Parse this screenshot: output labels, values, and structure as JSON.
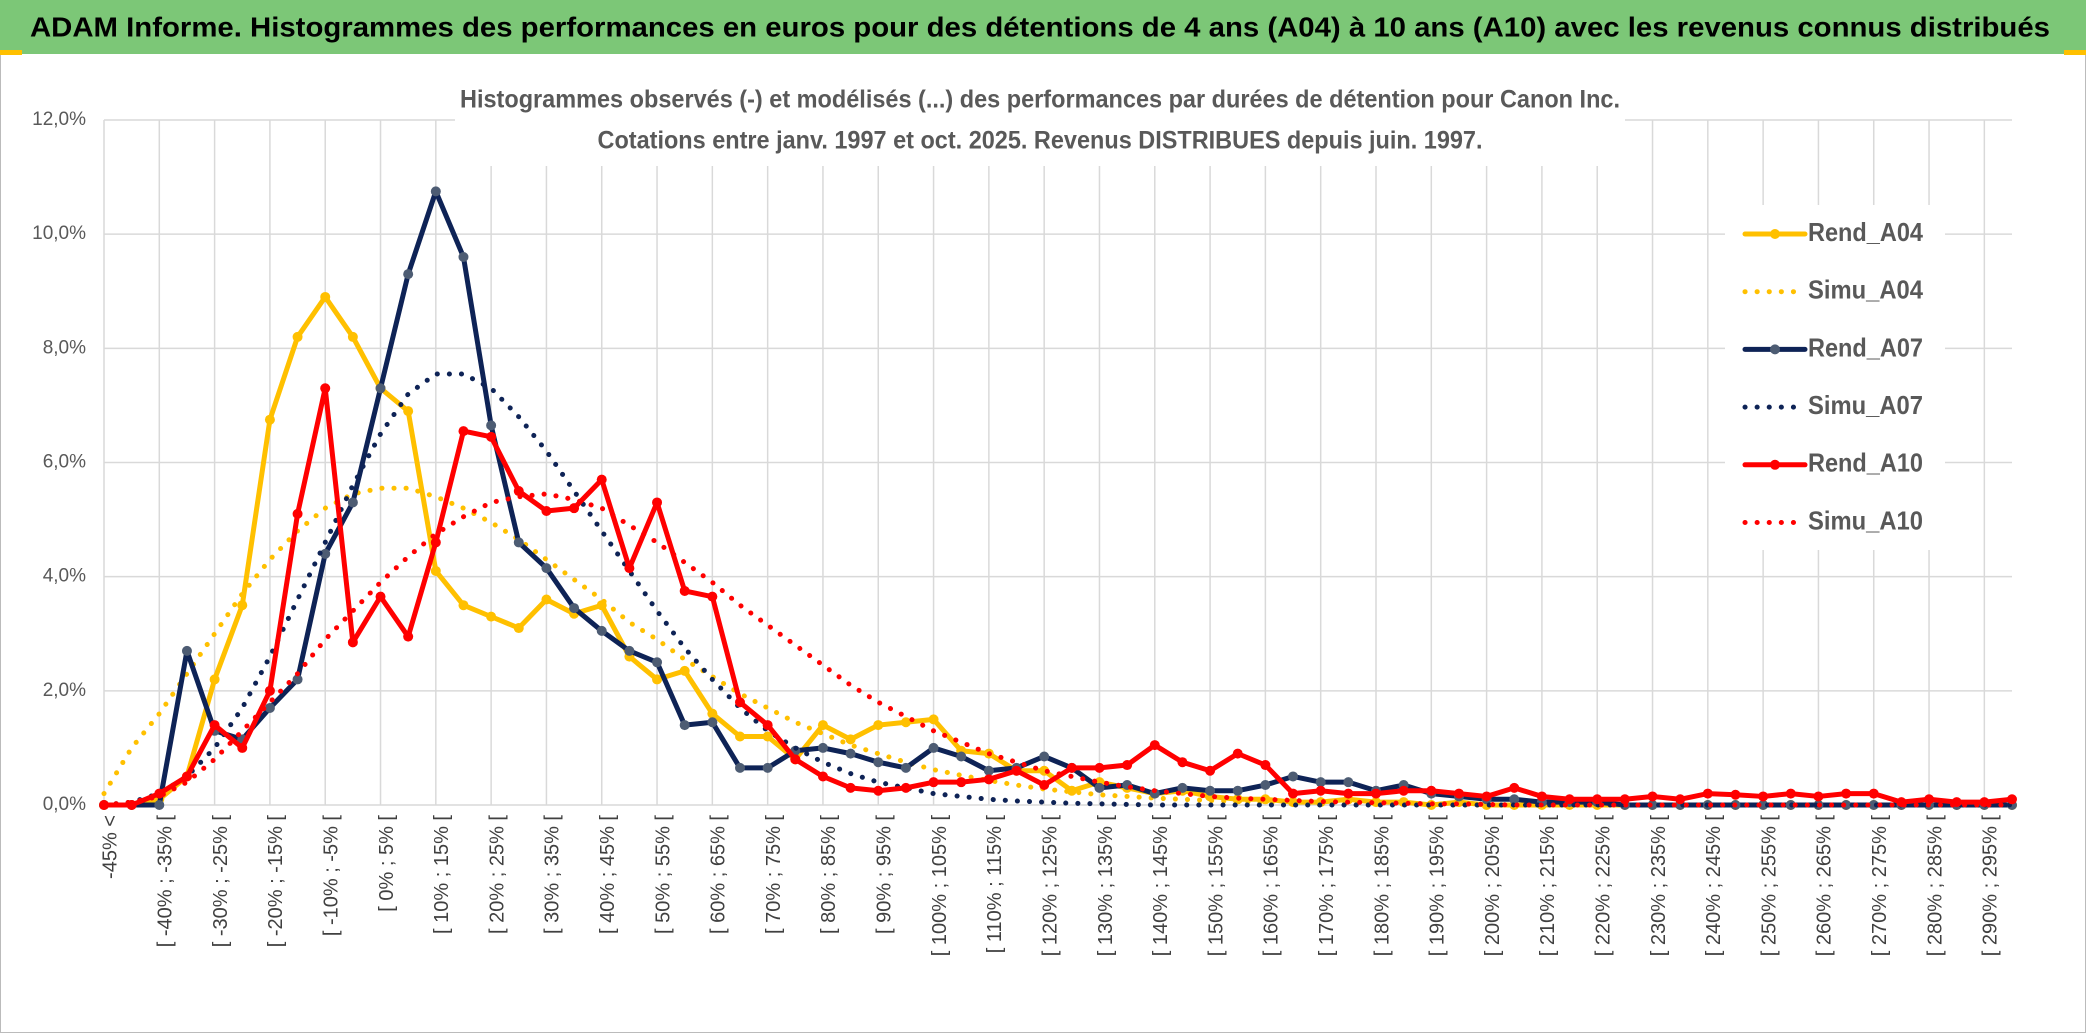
{
  "header": {
    "title": "ADAM Informe. Histogrammes des performances en euros pour des détentions de 4 ans (A04) à 10 ans (A10) avec les revenus connus distribués"
  },
  "chart_data": {
    "type": "line",
    "title": [
      "Histogrammes observés (-) et modélisés (...) des performances par durées de détention pour Canon Inc.",
      "Cotations entre janv. 1997 et oct. 2025. Revenus DISTRIBUES depuis juin. 1997."
    ],
    "categories": [
      "-45% <",
      null,
      "[ -40% ; -35% [",
      null,
      "[ -30% ; -25% [",
      null,
      "[ -20% ; -15% [",
      null,
      "[ -10% ; -5% [",
      null,
      "[ 0% ; 5% [",
      null,
      "[ 10% ; 15% [",
      null,
      "[ 20% ; 25% [",
      null,
      "[ 30% ; 35% [",
      null,
      "[ 40% ; 45% [",
      null,
      "[ 50% ; 55% [",
      null,
      "[ 60% ; 65% [",
      null,
      "[ 70% ; 75% [",
      null,
      "[ 80% ; 85% [",
      null,
      "[ 90% ; 95% [",
      null,
      "[ 100% ; 105% [",
      null,
      "[ 110% ; 115% [",
      null,
      "[ 120% ; 125% [",
      null,
      "[ 130% ; 135% [",
      null,
      "[ 140% ; 145% [",
      null,
      "[ 150% ; 155% [",
      null,
      "[ 160% ; 165% [",
      null,
      "[ 170% ; 175% [",
      null,
      "[ 180% ; 185% [",
      null,
      "[ 190% ; 195% [",
      null,
      "[ 200% ; 205% [",
      null,
      "[ 210% ; 215% [",
      null,
      "[ 220% ; 225% [",
      null,
      "[ 230% ; 235% [",
      null,
      "[ 240% ; 245% [",
      null,
      "[ 250% ; 255% [",
      null,
      "[ 260% ; 265% [",
      null,
      "[ 270% ; 275% [",
      null,
      "[ 280% ; 285% [",
      null,
      "[ 290% ; 295% [",
      null
    ],
    "series": [
      {
        "name": "Rend_A04",
        "color": "#ffc000",
        "style": "solid",
        "markers": true,
        "values": [
          0,
          0,
          0.1,
          0.5,
          2.2,
          3.5,
          6.75,
          8.2,
          8.9,
          8.2,
          7.3,
          6.9,
          4.1,
          3.5,
          3.3,
          3.1,
          3.6,
          3.35,
          3.5,
          2.6,
          2.2,
          2.35,
          1.6,
          1.2,
          1.2,
          0.8,
          1.4,
          1.15,
          1.4,
          1.45,
          1.5,
          0.95,
          0.9,
          0.6,
          0.6,
          0.25,
          0.4,
          0.3,
          0.2,
          0.25,
          0.15,
          0.1,
          0.1,
          0.05,
          0.05,
          0.1,
          0.05,
          0.05,
          0,
          0.05,
          0,
          0,
          0,
          0,
          0,
          0,
          0,
          0,
          0,
          0,
          0,
          0,
          0,
          0,
          0,
          0,
          0,
          0,
          0,
          0
        ]
      },
      {
        "name": "Simu_A04",
        "color": "#ffc000",
        "style": "dotted",
        "markers": false,
        "values": [
          0.2,
          1.0,
          1.6,
          2.3,
          3.0,
          3.7,
          4.3,
          4.8,
          5.2,
          5.45,
          5.55,
          5.55,
          5.4,
          5.2,
          4.95,
          4.65,
          4.3,
          3.95,
          3.6,
          3.2,
          2.9,
          2.55,
          2.25,
          1.95,
          1.7,
          1.45,
          1.25,
          1.05,
          0.9,
          0.75,
          0.62,
          0.52,
          0.43,
          0.35,
          0.28,
          0.23,
          0.18,
          0.15,
          0.12,
          0.1,
          0.08,
          0.06,
          0.05,
          0.04,
          0.03,
          0.02,
          0.02,
          0.01,
          0.01,
          0,
          0,
          0,
          0,
          0,
          0,
          0,
          0,
          0,
          0,
          0,
          0,
          0,
          0,
          0,
          0,
          0,
          0,
          0,
          0,
          0
        ]
      },
      {
        "name": "Rend_A07",
        "color": "#0e2356",
        "marker_color": "#4d5c73",
        "style": "solid",
        "markers": true,
        "values": [
          0,
          0,
          0,
          2.7,
          1.3,
          1.15,
          1.7,
          2.2,
          4.4,
          5.3,
          7.3,
          9.3,
          10.75,
          9.6,
          6.65,
          4.6,
          4.15,
          3.45,
          3.05,
          2.7,
          2.5,
          1.4,
          1.45,
          0.65,
          0.65,
          0.95,
          1.0,
          0.9,
          0.75,
          0.65,
          1.0,
          0.85,
          0.6,
          0.65,
          0.85,
          0.65,
          0.3,
          0.35,
          0.2,
          0.3,
          0.25,
          0.25,
          0.35,
          0.5,
          0.4,
          0.4,
          0.25,
          0.35,
          0.2,
          0.15,
          0.1,
          0.1,
          0.05,
          0.05,
          0.05,
          0,
          0,
          0,
          0,
          0,
          0,
          0,
          0,
          0,
          0,
          0,
          0,
          0,
          0,
          0
        ]
      },
      {
        "name": "Simu_A07",
        "color": "#0e2356",
        "style": "dotted",
        "markers": false,
        "values": [
          0,
          0.05,
          0.2,
          0.5,
          1.0,
          1.7,
          2.6,
          3.6,
          4.6,
          5.6,
          6.5,
          7.2,
          7.55,
          7.55,
          7.3,
          6.8,
          6.2,
          5.5,
          4.8,
          4.1,
          3.4,
          2.75,
          2.2,
          1.7,
          1.3,
          1.0,
          0.75,
          0.55,
          0.4,
          0.3,
          0.2,
          0.15,
          0.1,
          0.07,
          0.05,
          0.03,
          0.02,
          0.01,
          0,
          0,
          0,
          0,
          0,
          0,
          0,
          0,
          0,
          0,
          0,
          0,
          0,
          0,
          0,
          0,
          0,
          0,
          0,
          0,
          0,
          0,
          0,
          0,
          0,
          0,
          0,
          0,
          0,
          0,
          0,
          0
        ]
      },
      {
        "name": "Rend_A10",
        "color": "#ff0000",
        "style": "solid",
        "markers": true,
        "values": [
          0,
          0,
          0.2,
          0.5,
          1.4,
          1.0,
          2.0,
          5.1,
          7.3,
          2.85,
          3.65,
          2.95,
          4.6,
          6.55,
          6.45,
          5.5,
          5.15,
          5.2,
          5.7,
          4.15,
          5.3,
          3.75,
          3.65,
          1.8,
          1.4,
          0.8,
          0.5,
          0.3,
          0.25,
          0.3,
          0.4,
          0.4,
          0.45,
          0.6,
          0.35,
          0.65,
          0.65,
          0.7,
          1.05,
          0.75,
          0.6,
          0.9,
          0.7,
          0.2,
          0.25,
          0.2,
          0.2,
          0.25,
          0.25,
          0.2,
          0.15,
          0.3,
          0.15,
          0.1,
          0.1,
          0.1,
          0.15,
          0.1,
          0.2,
          0.18,
          0.15,
          0.2,
          0.15,
          0.2,
          0.2,
          0.05,
          0.1,
          0.05,
          0.05,
          0.1
        ]
      },
      {
        "name": "Simu_A10",
        "color": "#ff0000",
        "style": "dotted",
        "markers": false,
        "values": [
          0,
          0.05,
          0.15,
          0.4,
          0.8,
          1.3,
          1.8,
          2.3,
          2.9,
          3.4,
          3.9,
          4.35,
          4.75,
          5.05,
          5.3,
          5.4,
          5.45,
          5.35,
          5.2,
          4.9,
          4.6,
          4.25,
          3.9,
          3.5,
          3.15,
          2.8,
          2.45,
          2.1,
          1.8,
          1.55,
          1.3,
          1.1,
          0.9,
          0.75,
          0.6,
          0.5,
          0.4,
          0.32,
          0.25,
          0.2,
          0.15,
          0.12,
          0.1,
          0.08,
          0.06,
          0.05,
          0.04,
          0.03,
          0.02,
          0.02,
          0.01,
          0,
          0,
          0,
          0,
          0,
          0,
          0,
          0,
          0,
          0,
          0,
          0,
          0,
          0,
          0,
          0,
          0,
          0,
          0
        ]
      }
    ],
    "ylim": [
      0,
      12
    ],
    "yticks": [
      {
        "value": 0,
        "label": "0,0%"
      },
      {
        "value": 2,
        "label": "2,0%"
      },
      {
        "value": 4,
        "label": "4,0%"
      },
      {
        "value": 6,
        "label": "6,0%"
      },
      {
        "value": 8,
        "label": "8,0%"
      },
      {
        "value": 10,
        "label": "10,0%"
      },
      {
        "value": 12,
        "label": "12,0%"
      }
    ],
    "grid": true,
    "legend": "right"
  }
}
